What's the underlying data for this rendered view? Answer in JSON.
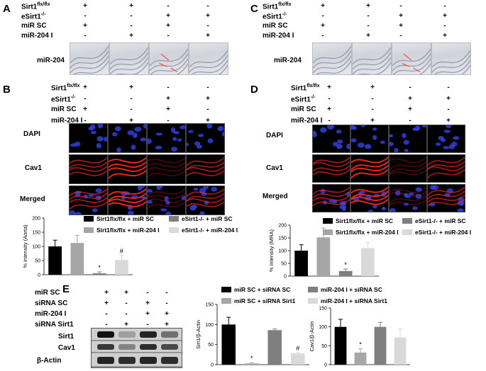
{
  "panels": {
    "A": "A",
    "B": "B",
    "C": "C",
    "D": "D",
    "E": "E"
  },
  "rows": {
    "sirt1_base": "Sirt1",
    "sirt1_sup": "flx/flx",
    "esirt1_base": "eSirt1",
    "esirt1_sup": "-/-",
    "mir_sc": "miR SC",
    "mir204i": "miR-204 I",
    "sirna_sc": "siRNA SC",
    "sirna_sirt1": "siRNA Sirt1"
  },
  "signs4": {
    "sirt1": [
      "+",
      "+",
      "-",
      "-"
    ],
    "esirt1": [
      "-",
      "-",
      "+",
      "+"
    ],
    "mirsc": [
      "+",
      "-",
      "+",
      "-"
    ],
    "mir204i": [
      "-",
      "+",
      "-",
      "+"
    ]
  },
  "signsE": {
    "mirsc": [
      "+",
      "+",
      "-",
      "-"
    ],
    "sirnasc": [
      "+",
      "-",
      "+",
      "-"
    ],
    "mir204i": [
      "-",
      "-",
      "+",
      "+"
    ],
    "sirnasirt1": [
      "-",
      "+",
      "-",
      "+"
    ]
  },
  "image_labels": {
    "mir204": "miR-204",
    "dapi": "DAPI",
    "cav1": "Cav1",
    "merged": "Merged"
  },
  "western_labels": [
    "Sirt1",
    "Cav1",
    "β-Actin"
  ],
  "colors": {
    "black": "#000000",
    "gray": "#7f7f7f",
    "silver": "#a6a6a6",
    "light": "#d9d9d9",
    "fluo_red": "#e8231c",
    "fluo_blue": "#2f3fd8"
  },
  "chart_data": [
    {
      "type": "bar",
      "id": "B",
      "ylabel": "% intensity (Aorta)",
      "ylim": [
        0,
        200
      ],
      "ticks": [
        "0",
        "50",
        "100",
        "150",
        "200"
      ],
      "categories": [
        "Sirt1flx/flx + miR SC",
        "Sirt1flx/flx + miR-204 I",
        "eSirt1-/- + miR SC",
        "eSirt1-/- + miR-204 I"
      ],
      "values": [
        100,
        112,
        5,
        52
      ],
      "errors": [
        22,
        27,
        5,
        17
      ],
      "annotations": [
        "",
        "",
        "*",
        "#"
      ],
      "legend": [
        "Sirt1flx/flx + miR SC",
        "eSirt1-/- + miR SC",
        "Sirt1flx/flx + miR-204 I",
        "eSirt1-/- + miR-204 I"
      ]
    },
    {
      "type": "bar",
      "id": "D",
      "ylabel": "% intensity (MRA)",
      "ylim": [
        0,
        200
      ],
      "ticks": [
        "0",
        "50",
        "100",
        "150",
        "200"
      ],
      "categories": [
        "Sirt1flx/flx + miR SC",
        "Sirt1flx/flx + miR-204 I",
        "eSirt1-/- + miR SC",
        "eSirt1-/- + miR-204 I"
      ],
      "values": [
        100,
        152,
        20,
        110
      ],
      "errors": [
        23,
        37,
        8,
        22
      ],
      "annotations": [
        "",
        "",
        "*",
        ""
      ],
      "legend": [
        "Sirt1flx/flx + miR SC",
        "eSirt1-/- + miR SC",
        "Sirt1flx/flx + miR-204 I",
        "eSirt1-/- + miR-204 I"
      ]
    },
    {
      "type": "bar",
      "id": "E1",
      "ylabel": "Sirt1/β-Actin",
      "ylim": [
        0,
        150
      ],
      "ticks": [
        "0",
        "50",
        "100",
        "150"
      ],
      "categories": [
        "miR SC + siRNA SC",
        "miR SC + siRNA Sirt1",
        "miR-204 I + siRNA SC",
        "miR-204 I + siRNA Sirt1"
      ],
      "values": [
        100,
        3,
        86,
        28
      ],
      "errors": [
        18,
        2,
        3,
        2
      ],
      "annotations": [
        "",
        "*",
        "",
        "#"
      ],
      "legend": [
        "miR SC + siRNA SC",
        "miR-204 I + siRNA SC",
        "miR SC + siRNA Sirt1",
        "miR-204 I + siRNA Sirt1"
      ]
    },
    {
      "type": "bar",
      "id": "E2",
      "ylabel": "Cav1/β-Actin",
      "ylim": [
        0,
        150
      ],
      "ticks": [
        "0",
        "50",
        "100",
        "150"
      ],
      "categories": [
        "miR SC + siRNA SC",
        "miR SC + siRNA Sirt1",
        "miR-204 I + siRNA SC",
        "miR-204 I + siRNA Sirt1"
      ],
      "values": [
        100,
        32,
        100,
        72
      ],
      "errors": [
        20,
        10,
        12,
        22
      ],
      "annotations": [
        "",
        "*",
        "",
        ""
      ]
    }
  ]
}
